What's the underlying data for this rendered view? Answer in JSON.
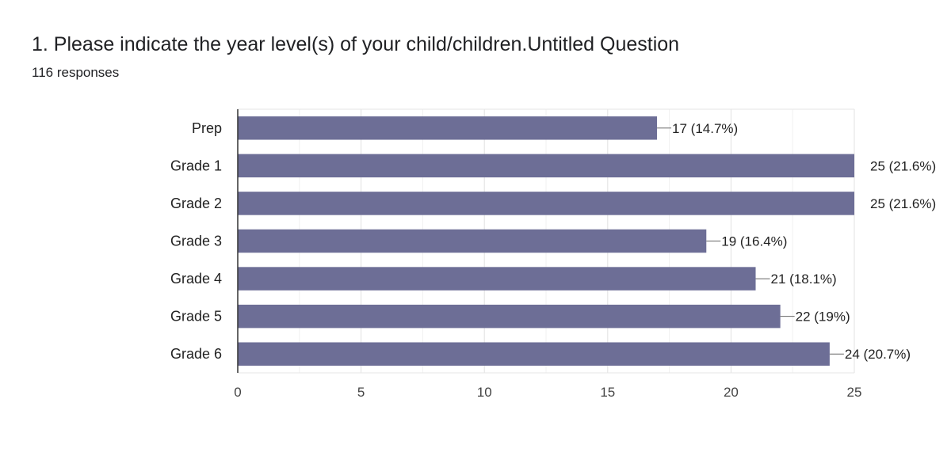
{
  "header": {
    "title": "1. Please indicate the year level(s) of your child/children.Untitled Question",
    "subtitle": "116 responses"
  },
  "colors": {
    "bar": "#6d6e96",
    "grid": "#e8e8e8",
    "axis": "#333333"
  },
  "chart_data": {
    "type": "bar",
    "orientation": "horizontal",
    "title": "",
    "xlabel": "",
    "ylabel": "",
    "categories": [
      "Prep",
      "Grade 1",
      "Grade 2",
      "Grade 3",
      "Grade 4",
      "Grade 5",
      "Grade 6"
    ],
    "values": [
      17,
      25,
      25,
      19,
      21,
      22,
      24
    ],
    "data_labels": [
      "17 (14.7%)",
      "25 (21.6%)",
      "25 (21.6%)",
      "19 (16.4%)",
      "21 (18.1%)",
      "22 (19%)",
      "24 (20.7%)"
    ],
    "xlim": [
      0,
      25
    ],
    "xticks": [
      0,
      5,
      10,
      15,
      20,
      25
    ],
    "grid": true,
    "legend": "none"
  }
}
